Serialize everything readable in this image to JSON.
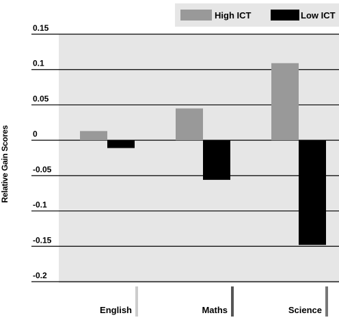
{
  "chart_data": {
    "type": "bar",
    "title": "",
    "xlabel": "",
    "ylabel": "Relative Gain Scores",
    "categories": [
      "English",
      "Maths",
      "Science"
    ],
    "series": [
      {
        "name": "High ICT",
        "color": "#999999",
        "values": [
          0.013,
          0.045,
          0.109
        ]
      },
      {
        "name": "Low ICT",
        "color": "#000000",
        "values": [
          -0.011,
          -0.056,
          -0.148
        ]
      }
    ],
    "ylim": [
      -0.2,
      0.15
    ],
    "yticks": [
      0.15,
      0.1,
      0.05,
      0,
      -0.05,
      -0.1,
      -0.15,
      -0.2
    ],
    "ytick_labels": [
      "0.15",
      "0.1",
      "0.05",
      "0",
      "-0.05",
      "-0.1",
      "-0.15",
      "-0.2"
    ],
    "grid": true,
    "legend_position": "top-right",
    "plot_background": "#e6e6e6",
    "divider_colors": [
      "#cccccc",
      "#555555",
      "#777777"
    ]
  }
}
